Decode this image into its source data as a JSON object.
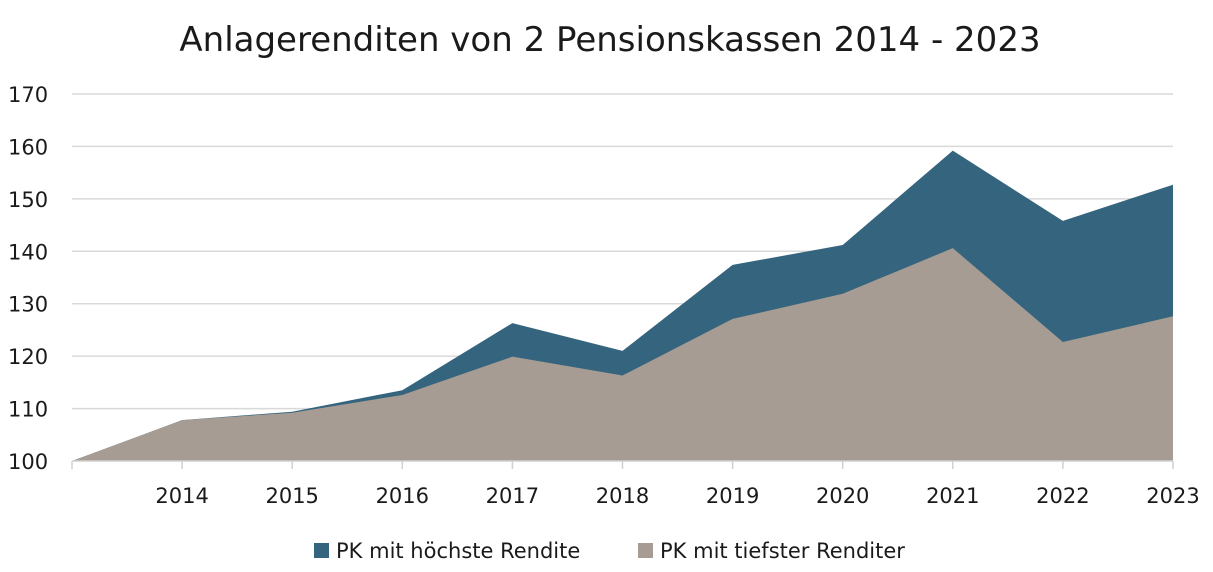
{
  "chart_data": {
    "type": "area",
    "title": "Anlagerenditen von 2 Pensionskassen 2014 - 2023",
    "x": [
      "2013",
      "2014",
      "2015",
      "2016",
      "2017",
      "2018",
      "2019",
      "2020",
      "2021",
      "2022",
      "2023"
    ],
    "x_tick_labels": [
      "2014",
      "2015",
      "2016",
      "2017",
      "2018",
      "2019",
      "2020",
      "2021",
      "2022",
      "2023"
    ],
    "ylim": [
      100,
      170
    ],
    "y_ticks": [
      "100",
      "110",
      "120",
      "130",
      "140",
      "150",
      "160",
      "170"
    ],
    "grid": true,
    "legend_position": "bottom",
    "series": [
      {
        "name": "PK mit höchste Rendite",
        "color": "#35647e",
        "values": [
          100,
          107.8,
          109.4,
          113.5,
          126.3,
          121.0,
          137.4,
          141.2,
          159.2,
          145.8,
          152.7
        ]
      },
      {
        "name": "PK mit tiefster Renditer",
        "color": "#a69c93",
        "values": [
          100,
          107.8,
          109.2,
          112.6,
          119.9,
          116.3,
          127.1,
          131.9,
          140.6,
          122.7,
          127.6
        ]
      }
    ]
  }
}
